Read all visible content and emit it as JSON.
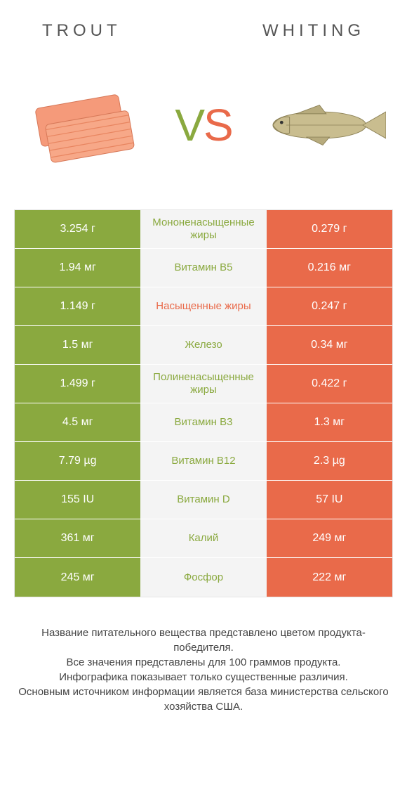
{
  "colors": {
    "green": "#8aa93f",
    "orange": "#e96a4a",
    "lightcell": "#f4f4f4",
    "border": "#e5e5e5"
  },
  "header": {
    "left": "TROUT",
    "right": "WHITING"
  },
  "vs": {
    "v": "V",
    "s": "S"
  },
  "rows": [
    {
      "left": "3.254 г",
      "mid": "Мононенасыщенные жиры",
      "right": "0.279 г",
      "mid_color": "#8aa93f"
    },
    {
      "left": "1.94 мг",
      "mid": "Витамин B5",
      "right": "0.216 мг",
      "mid_color": "#8aa93f"
    },
    {
      "left": "1.149 г",
      "mid": "Насыщенные жиры",
      "right": "0.247 г",
      "mid_color": "#e96a4a"
    },
    {
      "left": "1.5 мг",
      "mid": "Железо",
      "right": "0.34 мг",
      "mid_color": "#8aa93f"
    },
    {
      "left": "1.499 г",
      "mid": "Полиненасыщенные жиры",
      "right": "0.422 г",
      "mid_color": "#8aa93f"
    },
    {
      "left": "4.5 мг",
      "mid": "Витамин B3",
      "right": "1.3 мг",
      "mid_color": "#8aa93f"
    },
    {
      "left": "7.79 µg",
      "mid": "Витамин B12",
      "right": "2.3 µg",
      "mid_color": "#8aa93f"
    },
    {
      "left": "155 IU",
      "mid": "Витамин D",
      "right": "57 IU",
      "mid_color": "#8aa93f"
    },
    {
      "left": "361 мг",
      "mid": "Калий",
      "right": "249 мг",
      "mid_color": "#8aa93f"
    },
    {
      "left": "245 мг",
      "mid": "Фосфор",
      "right": "222 мг",
      "mid_color": "#8aa93f"
    }
  ],
  "footer": {
    "l1": "Название питательного вещества представлено цветом продукта-победителя.",
    "l2": "Все значения представлены для 100 граммов продукта.",
    "l3": "Инфографика показывает только существенные различия.",
    "l4": "Основным источником информации является база министерства сельского хозяйства США."
  }
}
